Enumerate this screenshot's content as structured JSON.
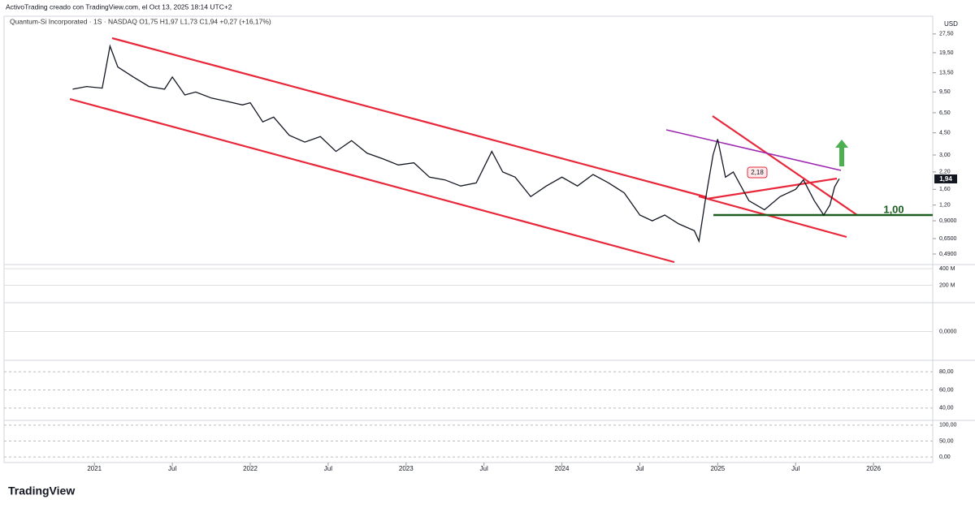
{
  "chart_data": {
    "type": "line",
    "title": "ActivoTrading creado con TradingView.com, el Oct 13, 2025 18:14 UTC+2",
    "subtitle": "Quantum-Si Incorporated · 1S · NASDAQ  O1,75 H1,97 L1,73 C1,94 +0,27 (+16,17%)",
    "currency": "USD",
    "brand": "TradingView",
    "log_scale": true,
    "color": "#131722",
    "x": [
      2020.86,
      2020.95,
      2021.05,
      2021.1,
      2021.15,
      2021.25,
      2021.35,
      2021.45,
      2021.5,
      2021.58,
      2021.65,
      2021.75,
      2021.85,
      2021.95,
      2022.0,
      2022.08,
      2022.15,
      2022.25,
      2022.35,
      2022.45,
      2022.55,
      2022.65,
      2022.75,
      2022.85,
      2022.95,
      2023.05,
      2023.15,
      2023.25,
      2023.35,
      2023.45,
      2023.55,
      2023.62,
      2023.7,
      2023.8,
      2023.9,
      2024.0,
      2024.1,
      2024.2,
      2024.3,
      2024.4,
      2024.5,
      2024.58,
      2024.66,
      2024.75,
      2024.85,
      2024.88,
      2024.92,
      2024.97,
      2025.0,
      2025.05,
      2025.1,
      2025.2,
      2025.3,
      2025.4,
      2025.5,
      2025.55,
      2025.62,
      2025.68,
      2025.72,
      2025.75,
      2025.78
    ],
    "values": [
      10,
      10.5,
      10.2,
      22,
      15,
      12.5,
      10.5,
      10,
      12.5,
      9,
      9.5,
      8.5,
      8,
      7.5,
      7.8,
      5.5,
      6,
      4.3,
      3.8,
      4.2,
      3.2,
      3.9,
      3.1,
      2.8,
      2.5,
      2.6,
      2.0,
      1.9,
      1.7,
      1.8,
      3.2,
      2.2,
      2.0,
      1.4,
      1.7,
      2.0,
      1.7,
      2.1,
      1.8,
      1.5,
      1.0,
      0.9,
      1.0,
      0.85,
      0.75,
      0.62,
      1.3,
      3.0,
      4.0,
      2.0,
      2.2,
      1.3,
      1.1,
      1.4,
      1.6,
      1.9,
      1.3,
      1.0,
      1.2,
      1.67,
      1.94
    ],
    "xlim": [
      2020.42,
      2026.38
    ],
    "xticks": [
      {
        "value": 2021,
        "label": "2021"
      },
      {
        "value": 2021.5,
        "label": "Jul"
      },
      {
        "value": 2022,
        "label": "2022"
      },
      {
        "value": 2022.5,
        "label": "Jul"
      },
      {
        "value": 2023,
        "label": "2023"
      },
      {
        "value": 2023.5,
        "label": "Jul"
      },
      {
        "value": 2024,
        "label": "2024"
      },
      {
        "value": 2024.5,
        "label": "Jul"
      },
      {
        "value": 2025,
        "label": "2025"
      },
      {
        "value": 2025.5,
        "label": "Jul"
      },
      {
        "value": 2026,
        "label": "2026"
      }
    ],
    "ylim": [
      0.41,
      38
    ],
    "yticks": [
      {
        "value": 27.5,
        "label": "27,50"
      },
      {
        "value": 19.5,
        "label": "19,50"
      },
      {
        "value": 13.5,
        "label": "13,50"
      },
      {
        "value": 9.5,
        "label": "9,50"
      },
      {
        "value": 6.5,
        "label": "6,50"
      },
      {
        "value": 4.5,
        "label": "4,50"
      },
      {
        "value": 3,
        "label": "3,00"
      },
      {
        "value": 2.2,
        "label": "2,20"
      },
      {
        "value": 1.6,
        "label": "1,60"
      },
      {
        "value": 1.2,
        "label": "1,20"
      },
      {
        "value": 0.9,
        "label": "0,9000"
      },
      {
        "value": 0.65,
        "label": "0,6500"
      },
      {
        "value": 0.49,
        "label": "0,4900"
      }
    ],
    "annotations": [
      {
        "value": 1,
        "label": "1,00"
      },
      {
        "value": 2.18,
        "label": "2,18"
      },
      {
        "value": 1.94,
        "label": "1,94"
      }
    ],
    "panels": [
      {
        "ylim": [
          0,
          440
        ],
        "yticks": [
          {
            "value": 400,
            "label": "400 M"
          },
          {
            "value": 200,
            "label": "200 M"
          }
        ]
      },
      {
        "ylim": [
          -1,
          1
        ],
        "yticks": [
          {
            "value": 0,
            "label": "0,0000"
          }
        ]
      },
      {
        "ylim": [
          27.3,
          91.8
        ],
        "yticks": [
          {
            "value": 80,
            "label": "80,00"
          },
          {
            "value": 60,
            "label": "60,00"
          },
          {
            "value": 40,
            "label": "40,00"
          }
        ]
      },
      {
        "ylim": [
          -17.5,
          112.5
        ],
        "yticks": [
          {
            "value": 100,
            "label": "100,00"
          },
          {
            "value": 50,
            "label": "50,00"
          },
          {
            "value": 0,
            "label": "0,00"
          }
        ]
      }
    ]
  }
}
